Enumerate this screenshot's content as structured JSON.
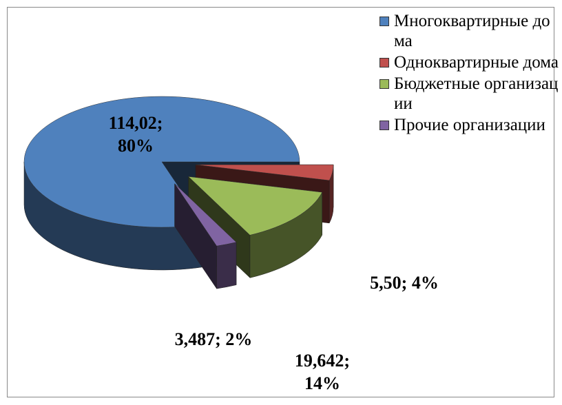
{
  "chart_data": {
    "type": "pie",
    "three_d": true,
    "categories": [
      "Многоквартирные дома",
      "Одноквартирные дома",
      "Бюджетные организации",
      "Прочие организации"
    ],
    "values": [
      114.02,
      5.5,
      19.642,
      3.487
    ],
    "value_labels": [
      "114,02; 80%",
      "5,50; 4%",
      "19,642; 14%",
      "3,487; 2%"
    ],
    "colors": [
      "#4f81bd",
      "#c0504d",
      "#9bbb59",
      "#8064a2"
    ],
    "legend": "right"
  }
}
